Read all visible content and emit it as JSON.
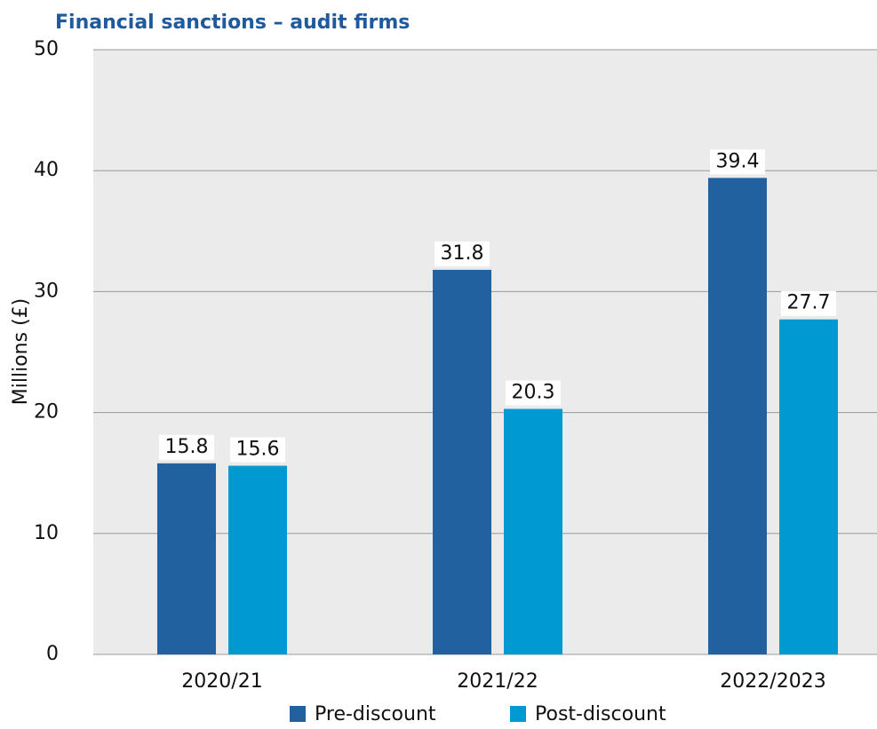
{
  "chart_data": {
    "type": "bar",
    "title": "Financial sanctions – audit firms",
    "y_label": "Millions (£)",
    "categories": [
      "2020/21",
      "2021/22",
      "2022/2023"
    ],
    "series": [
      {
        "name": "Pre-discount",
        "color": "#2161a0",
        "values": [
          15.8,
          31.8,
          39.4
        ]
      },
      {
        "name": "Post-discount",
        "color": "#0199d1",
        "values": [
          15.6,
          20.3,
          27.7
        ]
      }
    ],
    "ylim": [
      0,
      50
    ],
    "yticks": [
      0,
      10,
      20,
      30,
      40,
      50
    ],
    "grid": true,
    "legend": "bottom"
  }
}
